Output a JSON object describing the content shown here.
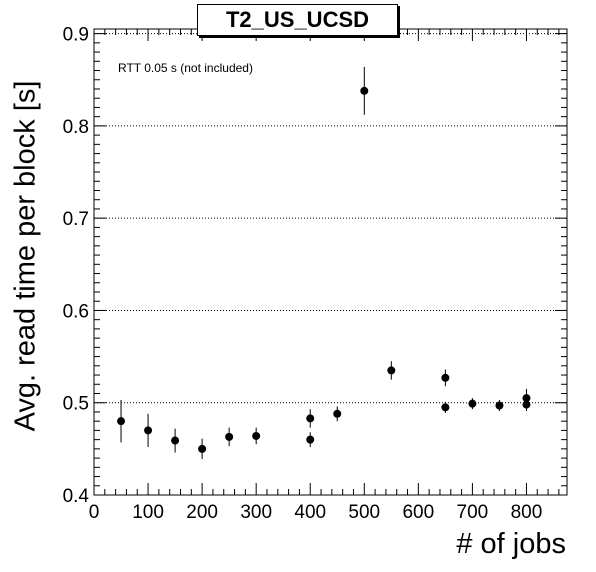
{
  "chart_data": {
    "type": "scatter",
    "title": "T2_US_UCSD",
    "annotation": "RTT 0.05 s (not included)",
    "xlabel": "# of jobs",
    "ylabel": "Avg. read time per block [s]",
    "xlim": [
      0,
      875
    ],
    "ylim": [
      0.4,
      0.905
    ],
    "xticks": [
      0,
      100,
      200,
      300,
      400,
      500,
      600,
      700,
      800
    ],
    "yticks": [
      0.4,
      0.5,
      0.6,
      0.7,
      0.8,
      0.9
    ],
    "xtick_labels": [
      "0",
      "100",
      "200",
      "300",
      "400",
      "500",
      "600",
      "700",
      "800"
    ],
    "ytick_labels": [
      "0.4",
      "0.5",
      "0.6",
      "0.7",
      "0.8",
      "0.9"
    ],
    "grid": "horizontal dotted at major y ticks",
    "marker_color": "#000000",
    "points": [
      {
        "x": 50,
        "y": 0.48,
        "err": 0.023
      },
      {
        "x": 100,
        "y": 0.47,
        "err": 0.018
      },
      {
        "x": 150,
        "y": 0.459,
        "err": 0.013
      },
      {
        "x": 200,
        "y": 0.45,
        "err": 0.011
      },
      {
        "x": 250,
        "y": 0.463,
        "err": 0.01
      },
      {
        "x": 300,
        "y": 0.464,
        "err": 0.009
      },
      {
        "x": 400,
        "y": 0.483,
        "err": 0.01
      },
      {
        "x": 400,
        "y": 0.46,
        "err": 0.008
      },
      {
        "x": 450,
        "y": 0.488,
        "err": 0.008
      },
      {
        "x": 500,
        "y": 0.838,
        "err": 0.026
      },
      {
        "x": 550,
        "y": 0.535,
        "err": 0.01
      },
      {
        "x": 650,
        "y": 0.527,
        "err": 0.009
      },
      {
        "x": 650,
        "y": 0.495,
        "err": 0.006
      },
      {
        "x": 700,
        "y": 0.499,
        "err": 0.006
      },
      {
        "x": 750,
        "y": 0.497,
        "err": 0.006
      },
      {
        "x": 800,
        "y": 0.505,
        "err": 0.01
      },
      {
        "x": 800,
        "y": 0.498,
        "err": 0.007
      }
    ]
  }
}
